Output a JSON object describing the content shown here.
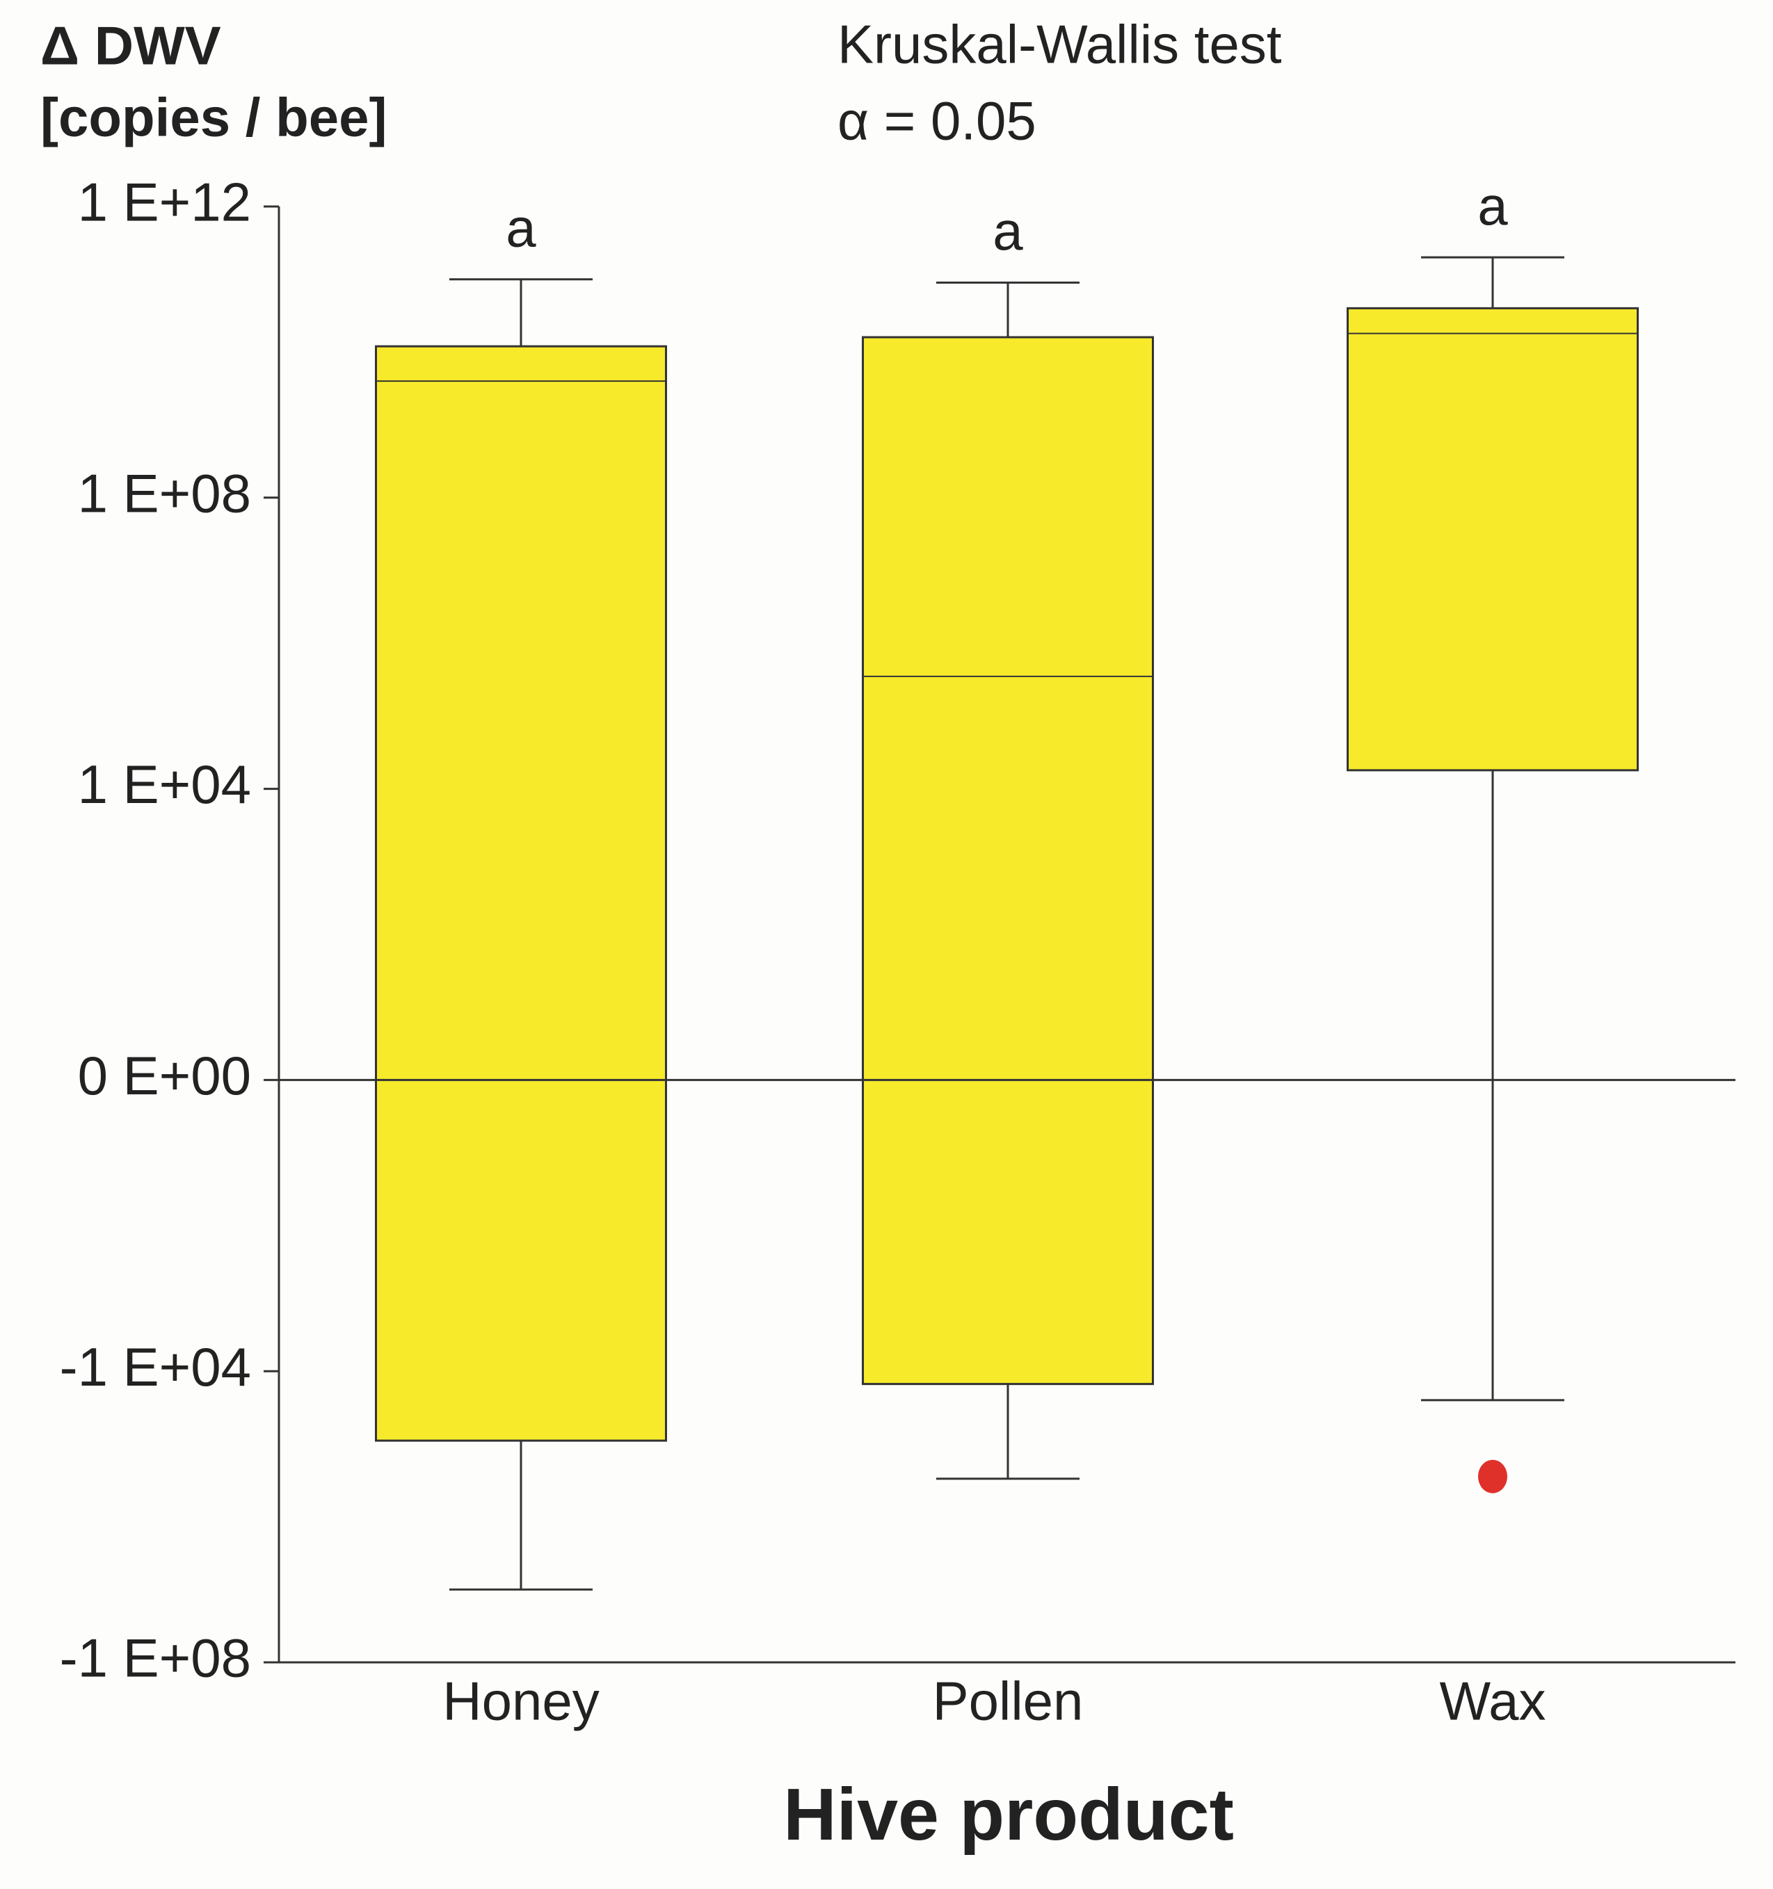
{
  "chart_data": {
    "type": "box",
    "ylabel": [
      "Δ DWV",
      "[copies / bee]"
    ],
    "annotations": [
      "Kruskal-Wallis test",
      "α = 0.05"
    ],
    "xlabel": "Hive product",
    "yscale": "signed-log",
    "categories": [
      "Honey",
      "Pollen",
      "Wax"
    ],
    "group_letters": [
      "a",
      "a",
      "a"
    ],
    "color": "#f7ea2b",
    "outlier_color": "#e0302a",
    "whisker_high": [
      100000000000,
      90000000000,
      200000000000
    ],
    "q3": [
      12000000000,
      16000000000,
      40000000000
    ],
    "median": [
      4000000000,
      350000,
      18000000000
    ],
    "q1": [
      -90000,
      -15000,
      18000
    ],
    "whisker_low": [
      -10000000,
      -300000,
      -25000
    ],
    "outliers": [
      [],
      [],
      [
        -280000
      ]
    ],
    "ylim": [
      -100000000,
      1000000000000
    ],
    "yticks": [
      {
        "value": 1000000000000,
        "label": "1 E+12"
      },
      {
        "value": 100000000,
        "label": "1 E+08"
      },
      {
        "value": 10000,
        "label": "1 E+04"
      },
      {
        "value": 0,
        "label": "0 E+00"
      },
      {
        "value": -10000,
        "label": "-1 E+04"
      },
      {
        "value": -100000000,
        "label": "-1 E+08"
      }
    ],
    "zero_line": true
  }
}
